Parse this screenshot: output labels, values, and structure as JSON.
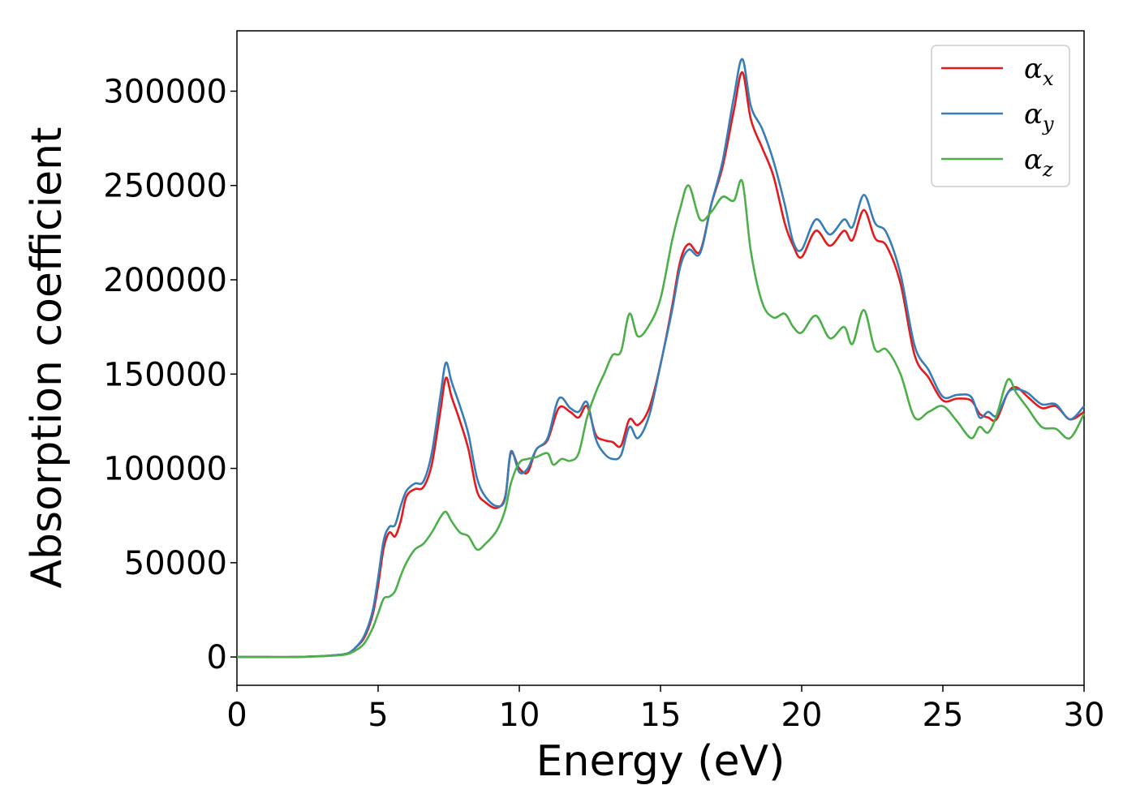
{
  "chart_data": {
    "type": "line",
    "title": "",
    "xlabel": "Energy (eV)",
    "ylabel": "Absorption coefficient",
    "xlim": [
      0,
      30
    ],
    "ylim": [
      -15000,
      332000
    ],
    "xticks": [
      0,
      5,
      10,
      15,
      20,
      25,
      30
    ],
    "yticks": [
      0,
      50000,
      100000,
      150000,
      200000,
      250000,
      300000
    ],
    "grid": false,
    "legend": {
      "placement": "top-right",
      "entries": [
        {
          "symbol": "α",
          "sub": "x",
          "color": "#e41a1c"
        },
        {
          "symbol": "α",
          "sub": "y",
          "color": "#377eb8"
        },
        {
          "symbol": "α",
          "sub": "z",
          "color": "#4daf4a"
        }
      ]
    },
    "series": [
      {
        "name": "αx",
        "color": "#e41a1c",
        "x": [
          0,
          1,
          2,
          3,
          3.5,
          3.8,
          4,
          4.2,
          4.5,
          4.8,
          5.0,
          5.2,
          5.4,
          5.6,
          5.8,
          6.0,
          6.3,
          6.6,
          6.9,
          7.2,
          7.4,
          7.6,
          7.9,
          8.2,
          8.5,
          8.8,
          9.2,
          9.5,
          9.7,
          10.0,
          10.3,
          10.6,
          11.0,
          11.4,
          11.8,
          12.1,
          12.4,
          12.7,
          13.0,
          13.3,
          13.6,
          13.9,
          14.2,
          14.6,
          15.0,
          15.4,
          15.7,
          16.0,
          16.4,
          16.8,
          17.2,
          17.6,
          17.9,
          18.2,
          18.6,
          19.0,
          19.4,
          19.7,
          20.0,
          20.5,
          21.0,
          21.5,
          21.8,
          22.2,
          22.6,
          23.0,
          23.5,
          24.0,
          24.5,
          25.0,
          25.5,
          26.0,
          26.3,
          26.6,
          26.9,
          27.3,
          27.6,
          28.0,
          28.5,
          29.0,
          29.5,
          30.0
        ],
        "y": [
          0,
          0,
          0,
          500,
          1000,
          1500,
          2500,
          5000,
          10000,
          22000,
          38000,
          58000,
          66000,
          64000,
          72000,
          85000,
          89000,
          90000,
          102000,
          130000,
          148000,
          138000,
          125000,
          110000,
          88000,
          82000,
          79000,
          85000,
          108000,
          100000,
          98000,
          110000,
          115000,
          132000,
          130000,
          127000,
          133000,
          118000,
          115000,
          114000,
          112000,
          126000,
          123000,
          132000,
          155000,
          185000,
          210000,
          219000,
          215000,
          240000,
          260000,
          290000,
          310000,
          285000,
          270000,
          255000,
          230000,
          218000,
          212000,
          226000,
          218000,
          226000,
          221000,
          237000,
          222000,
          218000,
          198000,
          160000,
          148000,
          136000,
          137000,
          136000,
          129000,
          127000,
          126000,
          140000,
          143000,
          138000,
          132000,
          133000,
          126000,
          130000
        ]
      },
      {
        "name": "αy",
        "color": "#377eb8",
        "x": [
          0,
          1,
          2,
          3,
          3.5,
          3.8,
          4,
          4.2,
          4.5,
          4.8,
          5.0,
          5.2,
          5.4,
          5.6,
          5.8,
          6.0,
          6.3,
          6.6,
          6.9,
          7.2,
          7.4,
          7.6,
          7.9,
          8.2,
          8.5,
          8.8,
          9.2,
          9.5,
          9.7,
          10.0,
          10.3,
          10.6,
          11.0,
          11.4,
          11.8,
          12.1,
          12.4,
          12.7,
          13.0,
          13.3,
          13.6,
          13.9,
          14.2,
          14.6,
          15.0,
          15.4,
          15.7,
          16.0,
          16.4,
          16.8,
          17.2,
          17.6,
          17.9,
          18.2,
          18.6,
          19.0,
          19.4,
          19.7,
          20.0,
          20.5,
          21.0,
          21.5,
          21.8,
          22.2,
          22.6,
          23.0,
          23.5,
          24.0,
          24.5,
          25.0,
          25.5,
          26.0,
          26.3,
          26.6,
          26.9,
          27.3,
          27.6,
          28.0,
          28.5,
          29.0,
          29.5,
          30.0
        ],
        "y": [
          0,
          0,
          0,
          500,
          1000,
          1500,
          2500,
          5000,
          11000,
          24000,
          42000,
          62000,
          69000,
          70000,
          80000,
          88000,
          92000,
          93000,
          108000,
          138000,
          156000,
          146000,
          133000,
          118000,
          95000,
          85000,
          80000,
          84000,
          109000,
          98000,
          100000,
          110000,
          116000,
          137000,
          132000,
          130000,
          135000,
          116000,
          108000,
          105000,
          107000,
          122000,
          116000,
          128000,
          155000,
          183000,
          207000,
          216000,
          214000,
          240000,
          263000,
          297000,
          317000,
          292000,
          280000,
          263000,
          240000,
          220000,
          216000,
          232000,
          224000,
          232000,
          228000,
          245000,
          230000,
          225000,
          203000,
          165000,
          152000,
          138000,
          139000,
          138000,
          127000,
          130000,
          128000,
          140000,
          142000,
          140000,
          134000,
          134000,
          126000,
          133000
        ]
      },
      {
        "name": "αz",
        "color": "#4daf4a",
        "x": [
          0,
          1,
          2,
          3,
          3.5,
          3.8,
          4,
          4.2,
          4.5,
          4.8,
          5.0,
          5.2,
          5.4,
          5.6,
          5.8,
          6.0,
          6.3,
          6.6,
          6.9,
          7.2,
          7.4,
          7.6,
          7.9,
          8.2,
          8.5,
          8.8,
          9.2,
          9.5,
          9.7,
          10.0,
          10.3,
          10.6,
          11.0,
          11.2,
          11.5,
          11.8,
          12.1,
          12.4,
          12.7,
          13.0,
          13.3,
          13.6,
          13.9,
          14.2,
          14.6,
          15.0,
          15.4,
          15.7,
          16.0,
          16.4,
          16.8,
          17.2,
          17.6,
          17.9,
          18.2,
          18.6,
          19.0,
          19.4,
          19.7,
          20.0,
          20.5,
          21.0,
          21.5,
          21.8,
          22.2,
          22.6,
          23.0,
          23.5,
          24.0,
          24.5,
          25.0,
          25.5,
          26.0,
          26.3,
          26.6,
          26.9,
          27.3,
          27.6,
          28.0,
          28.5,
          29.0,
          29.5,
          30.0
        ],
        "y": [
          0,
          0,
          0,
          400,
          800,
          1200,
          2000,
          3500,
          7000,
          15000,
          23000,
          31000,
          32000,
          35000,
          43000,
          50000,
          57000,
          60000,
          66000,
          74000,
          77000,
          72000,
          66000,
          64000,
          57000,
          60000,
          67000,
          78000,
          92000,
          103000,
          105000,
          106000,
          108000,
          102000,
          105000,
          104000,
          108000,
          127000,
          140000,
          150000,
          160000,
          162000,
          182000,
          170000,
          176000,
          190000,
          220000,
          238000,
          250000,
          232000,
          236000,
          244000,
          242000,
          252000,
          215000,
          188000,
          180000,
          182000,
          175000,
          172000,
          181000,
          169000,
          175000,
          166000,
          184000,
          163000,
          163000,
          150000,
          127000,
          130000,
          133000,
          125000,
          116000,
          122000,
          119000,
          128000,
          147000,
          140000,
          132000,
          122000,
          121000,
          116000,
          129000
        ]
      }
    ]
  }
}
